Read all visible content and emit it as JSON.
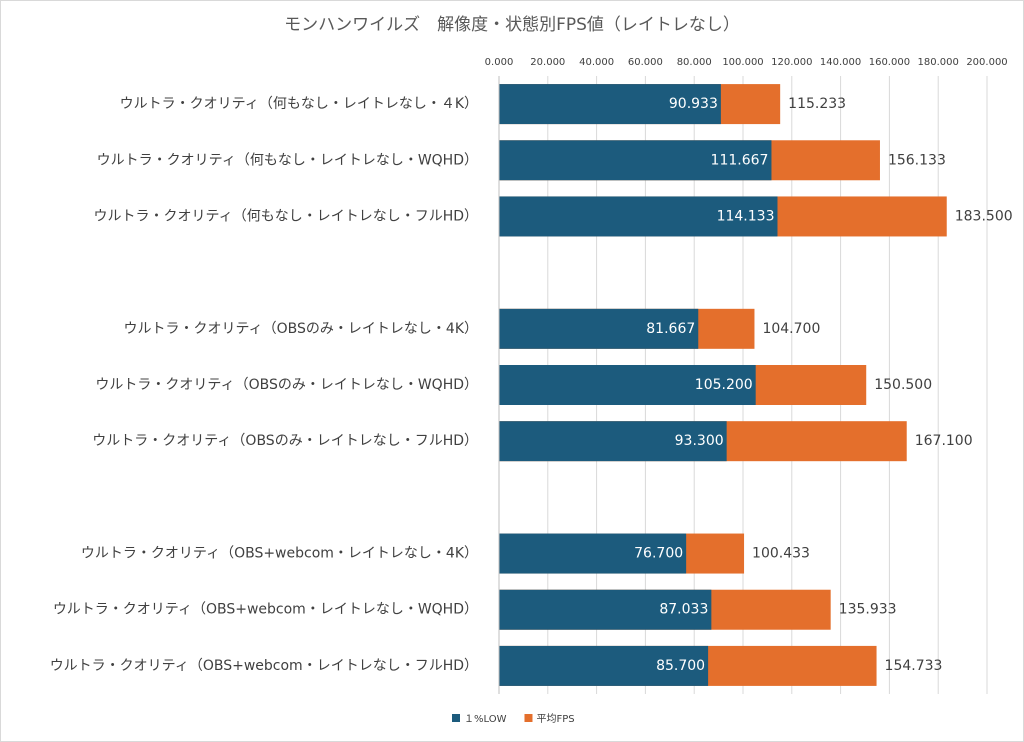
{
  "chart_data": {
    "type": "bar",
    "orientation": "horizontal",
    "overlap": true,
    "title": "モンハンワイルズ　解像度・状態別FPS値（レイトレなし）",
    "categories": [
      "ウルトラ・クオリティ（何もなし・レイトレなし・４K）",
      "ウルトラ・クオリティ（何もなし・レイトレなし・WQHD）",
      "ウルトラ・クオリティ（何もなし・レイトレなし・フルHD）",
      null,
      "ウルトラ・クオリティ（OBSのみ・レイトレなし・4K）",
      "ウルトラ・クオリティ（OBSのみ・レイトレなし・WQHD）",
      "ウルトラ・クオリティ（OBSのみ・レイトレなし・フルHD）",
      null,
      "ウルトラ・クオリティ（OBS+webcom・レイトレなし・4K）",
      "ウルトラ・クオリティ（OBS+webcom・レイトレなし・WQHD）",
      "ウルトラ・クオリティ（OBS+webcom・レイトレなし・フルHD）"
    ],
    "series": [
      {
        "name": "平均FPS",
        "color": "#e46f2c",
        "values": [
          115.233,
          156.133,
          183.5,
          null,
          104.7,
          150.5,
          167.1,
          null,
          100.433,
          135.933,
          154.733
        ],
        "value_labels": [
          "115.233",
          "156.133",
          "183.500",
          null,
          "104.700",
          "150.500",
          "167.100",
          null,
          "100.433",
          "135.933",
          "154.733"
        ]
      },
      {
        "name": "１%LOW",
        "color": "#1c5b7d",
        "values": [
          90.933,
          111.667,
          114.133,
          null,
          81.667,
          105.2,
          93.3,
          null,
          76.7,
          87.033,
          85.7
        ],
        "value_labels": [
          "90.933",
          "111.667",
          "114.133",
          null,
          "81.667",
          "105.200",
          "93.300",
          null,
          "76.700",
          "87.033",
          "85.700"
        ]
      }
    ],
    "xlim": [
      0,
      200
    ],
    "xticks": [
      {
        "value": 0,
        "label": "0.000"
      },
      {
        "value": 20,
        "label": "20.000"
      },
      {
        "value": 40,
        "label": "40.000"
      },
      {
        "value": 60,
        "label": "60.000"
      },
      {
        "value": 80,
        "label": "80.000"
      },
      {
        "value": 100,
        "label": "100.000"
      },
      {
        "value": 120,
        "label": "120.000"
      },
      {
        "value": 140,
        "label": "140.000"
      },
      {
        "value": 160,
        "label": "160.000"
      },
      {
        "value": 180,
        "label": "180.000"
      },
      {
        "value": 200,
        "label": "200.000"
      }
    ],
    "grid": true,
    "legend": "bottom"
  }
}
